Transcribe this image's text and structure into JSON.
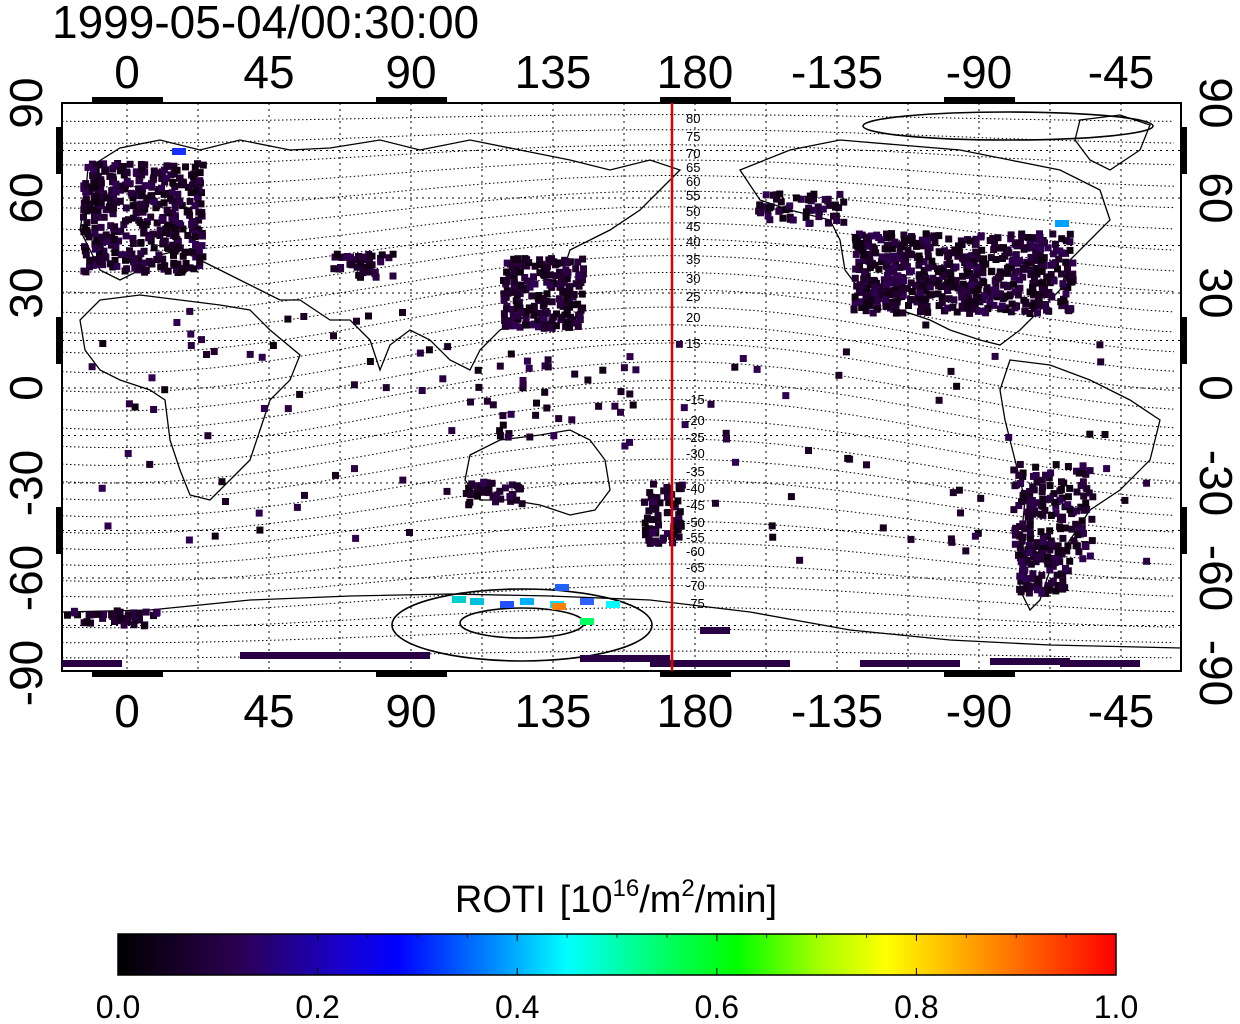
{
  "timestamp": "1999-05-04/00:30:00",
  "longitude_ticks": [
    "0",
    "45",
    "90",
    "135",
    "180",
    "-135",
    "-90",
    "-45"
  ],
  "latitude_ticks": [
    "90",
    "60",
    "30",
    "0",
    "-30",
    "-60",
    "-90"
  ],
  "contour_labels": [
    "80",
    "75",
    "70",
    "65",
    "60",
    "55",
    "50",
    "45",
    "40",
    "35",
    "30",
    "25",
    "20",
    "15",
    "-15",
    "-20",
    "-25",
    "-30",
    "-35",
    "-40",
    "-45",
    "-50",
    "-55",
    "-60",
    "-65",
    "-70",
    "-75"
  ],
  "colorbar": {
    "title": "ROTI",
    "unit_open": "[10",
    "unit_sup1": "16",
    "unit_mid": "/m",
    "unit_sup2": "2",
    "unit_close": "/min]",
    "ticks": [
      "0.0",
      "0.2",
      "0.4",
      "0.6",
      "0.8",
      "1.0"
    ],
    "range": [
      0.0,
      1.0
    ]
  },
  "colors": {
    "meridian_line": "#e00000",
    "colormap": [
      "#000000",
      "#3a0060",
      "#0000ff",
      "#00ffff",
      "#00ff00",
      "#ffff00",
      "#ff0000"
    ]
  }
}
